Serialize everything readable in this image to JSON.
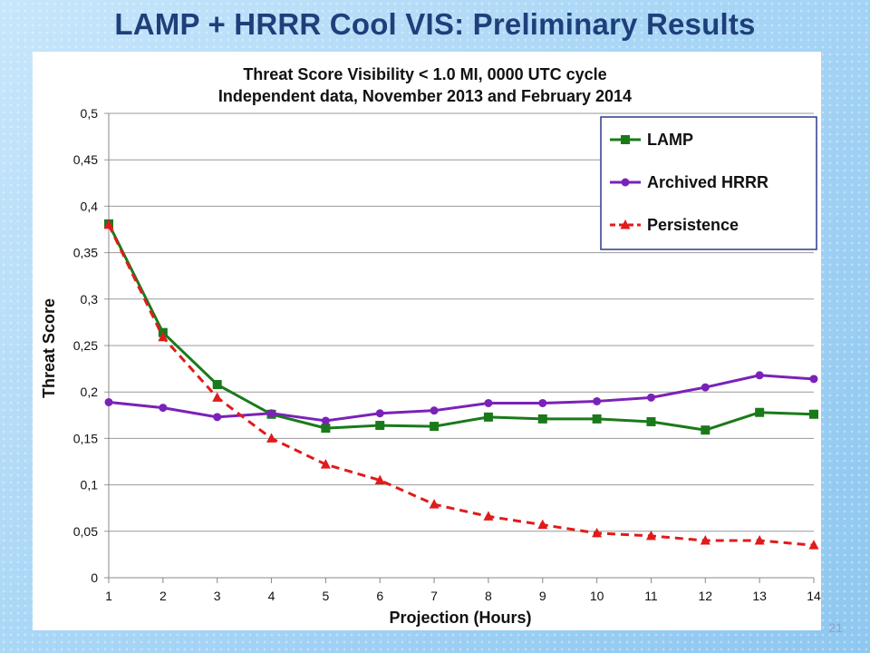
{
  "slide": {
    "title": "LAMP + HRRR Cool VIS: Preliminary Results",
    "number": "21"
  },
  "chart_data": {
    "type": "line",
    "title": "Threat Score Visibility < 1.0 MI, 0000 UTC cycle",
    "subtitle": "Independent data, November 2013 and February 2014",
    "xlabel": "Projection (Hours)",
    "ylabel": "Threat Score",
    "x": [
      1,
      2,
      3,
      4,
      5,
      6,
      7,
      8,
      9,
      10,
      11,
      12,
      13,
      14
    ],
    "xlim": [
      1,
      14
    ],
    "ylim": [
      0,
      0.5
    ],
    "yticks": [
      0,
      0.05,
      0.1,
      0.15,
      0.2,
      0.25,
      0.3,
      0.35,
      0.4,
      0.45,
      0.5
    ],
    "ytick_labels": [
      "0",
      "0,05",
      "0,1",
      "0,15",
      "0,2",
      "0,25",
      "0,3",
      "0,35",
      "0,4",
      "0,45",
      "0,5"
    ],
    "grid": true,
    "legend": "top-right",
    "series": [
      {
        "name": "LAMP",
        "color": "#1a7a1a",
        "marker": "square",
        "dash": false,
        "values": [
          0.381,
          0.264,
          0.208,
          0.176,
          0.161,
          0.164,
          0.163,
          0.173,
          0.171,
          0.171,
          0.168,
          0.159,
          0.178,
          0.176
        ]
      },
      {
        "name": "Archived HRRR",
        "color": "#7a22b8",
        "marker": "circle",
        "dash": false,
        "values": [
          0.189,
          0.183,
          0.173,
          0.177,
          0.169,
          0.177,
          0.18,
          0.188,
          0.188,
          0.19,
          0.194,
          0.205,
          0.218,
          0.214
        ]
      },
      {
        "name": "Persistence",
        "color": "#e01b1b",
        "marker": "triangle",
        "dash": true,
        "values": [
          0.38,
          0.259,
          0.194,
          0.15,
          0.122,
          0.105,
          0.079,
          0.066,
          0.057,
          0.048,
          0.045,
          0.04,
          0.04,
          0.035
        ]
      }
    ]
  }
}
